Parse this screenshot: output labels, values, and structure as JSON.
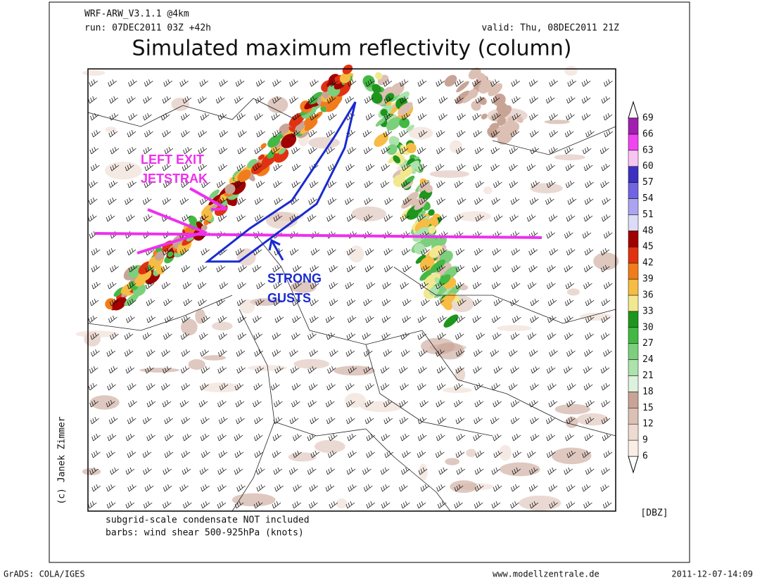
{
  "header": {
    "model": "WRF-ARW_V3.1.1 @4km",
    "run": "run: 07DEC2011 03Z +42h",
    "valid": "valid: Thu, 08DEC2011 21Z",
    "title": "Simulated maximum reflectivity (column)"
  },
  "annotations": {
    "jet": [
      "LEFT EXIT",
      "JETSTRAK"
    ],
    "gusts": [
      "STRONG",
      "GUSTS"
    ]
  },
  "colorbar": {
    "unit": "[DBZ]",
    "levels": [
      6,
      9,
      12,
      15,
      18,
      21,
      24,
      27,
      30,
      33,
      36,
      39,
      42,
      45,
      48,
      51,
      54,
      57,
      60,
      63,
      66,
      69
    ],
    "colors": [
      "#fbeee6",
      "#eedad0",
      "#dcc0b4",
      "#c8a496",
      "#dcf2dc",
      "#ace2ac",
      "#7ccf7c",
      "#44b844",
      "#1e961e",
      "#f2e890",
      "#f6bc44",
      "#f07c1c",
      "#e03212",
      "#a00000",
      "#dcdcf8",
      "#aca4f0",
      "#7064e0",
      "#3c30c0",
      "#f8c4f2",
      "#f044f0",
      "#a020b0"
    ]
  },
  "footer": {
    "note1": "subgrid-scale condensate NOT included",
    "note2": "barbs: wind shear 500-925hPa (knots)",
    "credit": "(c) Janek Zimmer",
    "grads": "GrADS: COLA/IGES",
    "site": "www.modellzentrale.de",
    "timestamp": "2011-12-07-14:09"
  }
}
